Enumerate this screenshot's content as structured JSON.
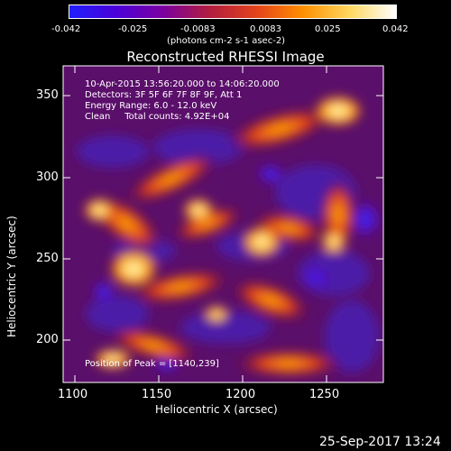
{
  "colorbar": {
    "tick_labels": [
      "-0.042",
      "-0.025",
      "-0.0083",
      "0.0083",
      "0.025",
      "0.042"
    ],
    "unit_label": "(photons cm-2 s-1 asec-2)",
    "colors": [
      "#1f1fff",
      "#4b00d8",
      "#7b00a0",
      "#b11d3f",
      "#e4421c",
      "#ff8f00",
      "#ffd75f",
      "#ffffff"
    ]
  },
  "title": "Reconstructed RHESSI Image",
  "overlay": {
    "line1": "10-Apr-2015 13:56:20.000 to 14:06:20.000",
    "line2": "Detectors: 3F 5F 6F 7F 8F 9F, Att 1",
    "line3": "Energy Range: 6.0 - 12.0 keV",
    "line4": "Clean     Total counts: 4.92E+04",
    "peak": "Position of Peak = [1140,239]"
  },
  "axes": {
    "x_title": "Heliocentric X (arcsec)",
    "y_title": "Heliocentric Y (arcsec)",
    "x_ticks": [
      "1100",
      "1150",
      "1200",
      "1250"
    ],
    "y_ticks": [
      "200",
      "250",
      "300",
      "350"
    ],
    "x_range": [
      1100,
      1290
    ],
    "y_range": [
      174,
      370
    ]
  },
  "date_stamp": "25-Sep-2017 13:24"
}
